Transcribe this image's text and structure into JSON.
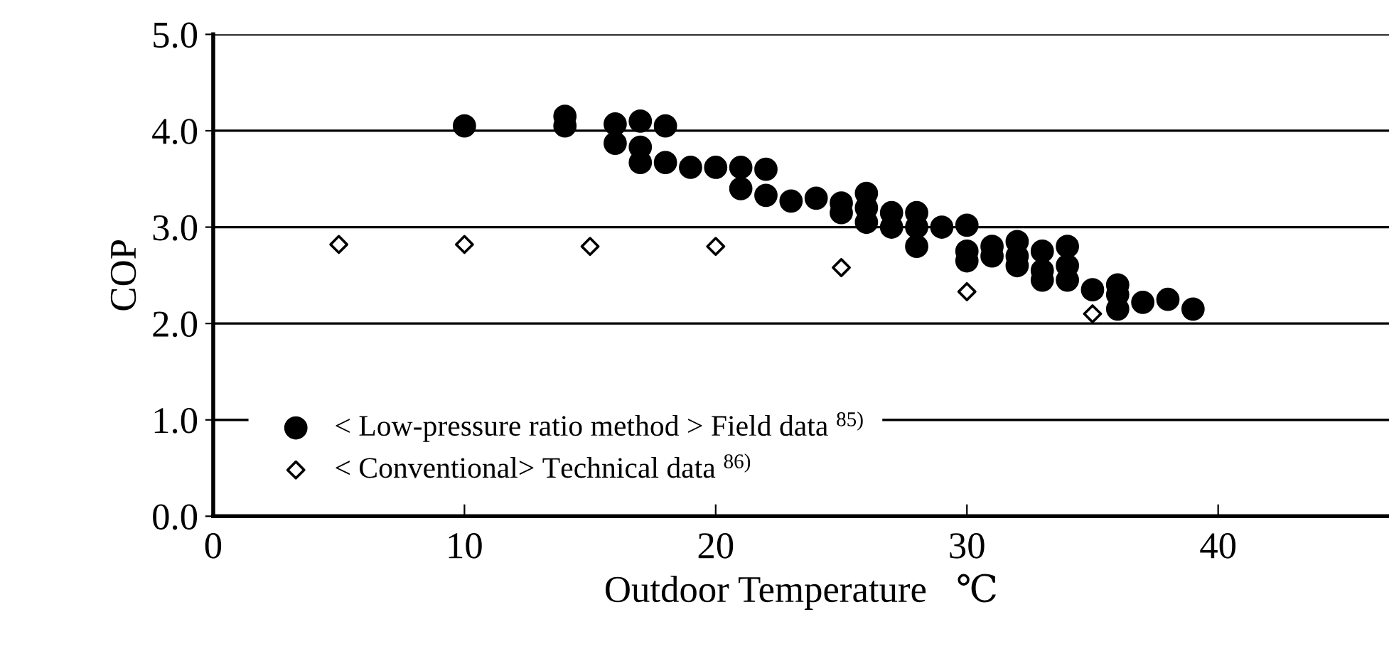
{
  "chart_data": {
    "type": "scatter",
    "xlabel": "Outdoor Temperature　℃",
    "ylabel": "COP",
    "xlim": [
      0,
      46.8
    ],
    "xticks": [
      0,
      10,
      20,
      30,
      40
    ],
    "ylim": [
      0,
      5
    ],
    "yticks": [
      {
        "value": 0,
        "label": "0.0"
      },
      {
        "value": 1,
        "label": "1.0"
      },
      {
        "value": 2,
        "label": "2.0"
      },
      {
        "value": 3,
        "label": "3.0"
      },
      {
        "value": 4,
        "label": "4.0"
      },
      {
        "value": 5,
        "label": "5.0"
      }
    ],
    "grid": "y",
    "legend": "bottom left",
    "series": [
      {
        "name": "< Low-pressure ratio method > Field data $^{85)}$",
        "color": "#000000",
        "marker": "circle",
        "x": [
          10,
          14,
          14,
          16,
          16,
          17,
          17,
          17,
          18,
          18,
          19,
          20,
          21,
          21,
          22,
          22,
          23,
          24,
          25,
          25,
          26,
          26,
          26,
          27,
          27,
          28,
          28,
          28,
          29,
          30,
          30,
          30,
          31,
          31,
          32,
          32,
          32,
          33,
          33,
          33,
          34,
          34,
          34,
          35,
          36,
          36,
          36,
          37,
          38,
          39
        ],
        "values": [
          4.05,
          4.15,
          4.05,
          4.07,
          3.87,
          4.1,
          3.83,
          3.67,
          4.05,
          3.67,
          3.62,
          3.62,
          3.62,
          3.4,
          3.6,
          3.33,
          3.27,
          3.3,
          3.25,
          3.15,
          3.35,
          3.2,
          3.05,
          3.15,
          3.0,
          3.15,
          3.0,
          2.8,
          3.0,
          3.02,
          2.75,
          2.65,
          2.8,
          2.7,
          2.85,
          2.7,
          2.6,
          2.75,
          2.55,
          2.45,
          2.8,
          2.6,
          2.45,
          2.35,
          2.4,
          2.3,
          2.15,
          2.22,
          2.25,
          2.15
        ]
      },
      {
        "name": "< Conventional> Technical data $^{86)}$",
        "color": "#000000",
        "marker": "diamond",
        "x": [
          5,
          10,
          15,
          20,
          25,
          30,
          35
        ],
        "values": [
          2.82,
          2.82,
          2.8,
          2.8,
          2.58,
          2.33,
          2.1
        ]
      }
    ]
  }
}
